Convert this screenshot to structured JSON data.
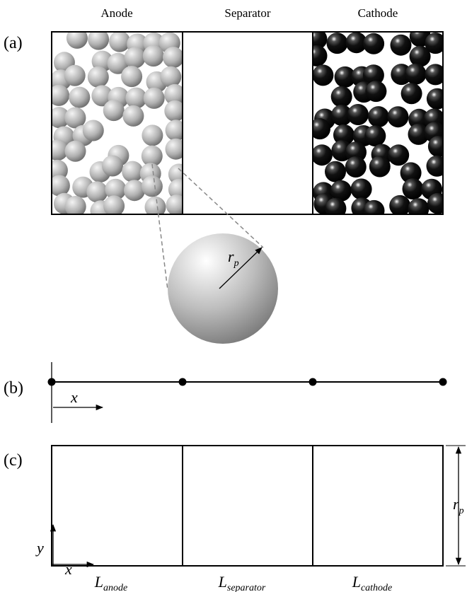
{
  "header": {
    "anode": "Anode",
    "separator": "Separator",
    "cathode": "Cathode"
  },
  "panels": {
    "a": "(a)",
    "b": "(b)",
    "c": "(c)"
  },
  "particle_radius": {
    "base": "r",
    "sub": "p"
  },
  "mesh_axis": "x",
  "domain": {
    "x_axis": "x",
    "y_axis": "y",
    "height": {
      "base": "r",
      "sub": "p"
    },
    "lengths": [
      {
        "base": "L",
        "sub": "anode"
      },
      {
        "base": "L",
        "sub": "separator"
      },
      {
        "base": "L",
        "sub": "cathode"
      }
    ]
  }
}
